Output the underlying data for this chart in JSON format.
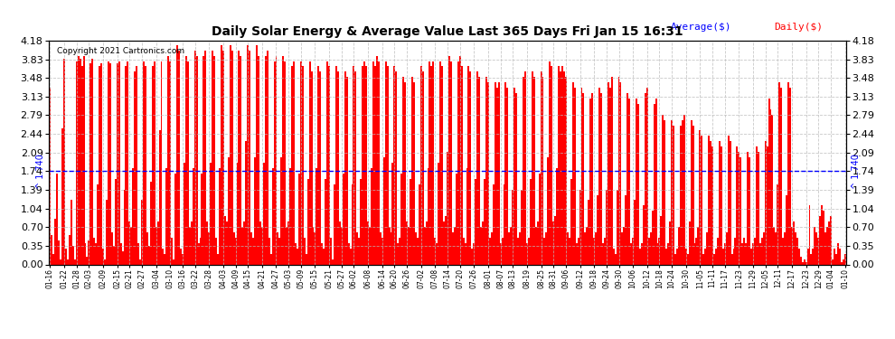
{
  "title": "Daily Solar Energy & Average Value Last 365 Days Fri Jan 15 16:31",
  "copyright": "Copyright 2021 Cartronics.com",
  "average_value": 1.74,
  "bar_color": "#ff0000",
  "average_line_color": "#0000ff",
  "background_color": "#ffffff",
  "grid_color": "#bbbbbb",
  "ylim": [
    0.0,
    4.18
  ],
  "yticks": [
    0.0,
    0.35,
    0.7,
    1.04,
    1.39,
    1.74,
    2.09,
    2.44,
    2.79,
    3.13,
    3.48,
    3.83,
    4.18
  ],
  "legend_avg_label": "Average($)",
  "legend_daily_label": "Daily($)",
  "legend_avg_color": "#0000ff",
  "legend_daily_color": "#ff0000",
  "xtick_labels": [
    "01-16",
    "01-22",
    "01-28",
    "02-03",
    "02-09",
    "02-15",
    "02-21",
    "02-27",
    "03-04",
    "03-10",
    "03-16",
    "03-22",
    "03-28",
    "04-03",
    "04-09",
    "04-15",
    "04-21",
    "04-27",
    "05-03",
    "05-09",
    "05-15",
    "05-21",
    "05-27",
    "06-02",
    "06-08",
    "06-14",
    "06-20",
    "06-26",
    "07-02",
    "07-08",
    "07-14",
    "07-20",
    "07-26",
    "08-01",
    "08-07",
    "08-13",
    "08-19",
    "08-25",
    "08-31",
    "09-06",
    "09-12",
    "09-18",
    "09-24",
    "09-30",
    "10-06",
    "10-12",
    "10-18",
    "10-24",
    "10-30",
    "11-05",
    "11-11",
    "11-17",
    "11-23",
    "11-29",
    "12-05",
    "12-11",
    "12-17",
    "12-23",
    "12-29",
    "01-04",
    "01-10"
  ],
  "bar_values": [
    3.3,
    0.55,
    0.2,
    0.85,
    1.7,
    0.45,
    0.1,
    2.55,
    3.85,
    0.3,
    0.1,
    0.55,
    1.2,
    0.35,
    0.1,
    3.8,
    3.9,
    3.85,
    3.7,
    3.9,
    0.4,
    0.15,
    0.45,
    3.75,
    3.85,
    0.5,
    0.4,
    1.5,
    3.7,
    3.75,
    0.3,
    0.1,
    1.2,
    3.8,
    3.75,
    0.6,
    0.35,
    1.6,
    3.75,
    3.8,
    0.4,
    0.25,
    1.4,
    3.7,
    3.8,
    0.8,
    0.7,
    1.8,
    3.6,
    3.7,
    0.4,
    0.1,
    1.2,
    3.8,
    3.7,
    0.6,
    0.35,
    1.55,
    3.7,
    3.8,
    0.7,
    0.8,
    2.5,
    3.8,
    0.3,
    0.2,
    1.8,
    3.9,
    3.8,
    0.5,
    0.1,
    1.7,
    4.1,
    4.0,
    0.3,
    0.2,
    1.9,
    3.9,
    3.8,
    0.7,
    0.8,
    1.8,
    4.0,
    3.9,
    0.4,
    0.5,
    1.7,
    3.9,
    4.0,
    0.8,
    0.6,
    1.9,
    4.0,
    3.9,
    0.5,
    0.2,
    1.8,
    4.1,
    4.0,
    0.9,
    0.8,
    2.0,
    4.1,
    4.0,
    0.6,
    0.5,
    1.9,
    4.0,
    3.9,
    0.7,
    0.8,
    2.3,
    4.1,
    4.0,
    0.6,
    0.5,
    2.0,
    4.1,
    3.9,
    0.8,
    0.7,
    1.9,
    3.9,
    4.0,
    0.5,
    0.2,
    1.8,
    3.8,
    3.9,
    0.6,
    0.5,
    2.0,
    3.9,
    3.8,
    0.7,
    0.8,
    1.8,
    3.7,
    3.8,
    0.4,
    0.3,
    1.7,
    3.8,
    3.7,
    0.5,
    0.2,
    1.6,
    3.8,
    3.6,
    0.7,
    0.6,
    1.8,
    3.7,
    3.6,
    0.4,
    0.3,
    1.6,
    3.8,
    3.7,
    0.5,
    0.1,
    1.5,
    3.7,
    3.6,
    0.8,
    0.7,
    1.7,
    3.6,
    3.5,
    0.4,
    0.3,
    1.5,
    3.7,
    3.6,
    0.6,
    0.5,
    1.6,
    3.7,
    3.8,
    3.7,
    0.8,
    0.7,
    1.8,
    3.8,
    3.7,
    3.9,
    3.8,
    0.6,
    0.5,
    2.0,
    3.8,
    3.7,
    0.7,
    0.6,
    1.9,
    3.7,
    3.6,
    0.4,
    0.5,
    1.7,
    3.5,
    3.4,
    0.8,
    0.7,
    1.6,
    3.5,
    3.4,
    0.6,
    0.5,
    1.5,
    3.7,
    3.6,
    0.7,
    0.8,
    1.8,
    3.8,
    3.7,
    3.8,
    0.5,
    0.4,
    1.9,
    3.8,
    3.7,
    0.8,
    0.9,
    2.1,
    3.9,
    3.8,
    0.6,
    0.7,
    1.7,
    3.8,
    3.9,
    3.7,
    0.5,
    0.4,
    1.8,
    3.7,
    3.6,
    0.3,
    0.4,
    1.6,
    3.6,
    3.5,
    0.7,
    0.8,
    1.6,
    3.5,
    3.4,
    0.5,
    0.6,
    1.5,
    3.4,
    3.3,
    3.4,
    0.4,
    0.5,
    1.5,
    3.4,
    3.3,
    0.6,
    0.7,
    1.4,
    3.3,
    3.2,
    0.5,
    0.6,
    1.4,
    3.5,
    3.6,
    0.4,
    0.5,
    1.6,
    3.6,
    3.5,
    0.7,
    0.8,
    1.7,
    3.6,
    3.5,
    0.5,
    0.6,
    2.0,
    3.8,
    3.7,
    0.8,
    0.9,
    1.8,
    3.7,
    3.6,
    3.7,
    3.6,
    3.5,
    0.6,
    0.5,
    1.6,
    3.4,
    3.3,
    0.4,
    0.5,
    1.4,
    3.3,
    3.2,
    0.6,
    0.7,
    1.2,
    3.1,
    3.2,
    0.5,
    0.6,
    1.3,
    3.3,
    3.2,
    0.4,
    0.5,
    1.4,
    3.4,
    3.3,
    3.5,
    0.3,
    0.2,
    1.4,
    3.5,
    3.4,
    0.6,
    0.7,
    1.3,
    3.2,
    3.1,
    0.4,
    0.5,
    1.2,
    3.1,
    3.0,
    0.3,
    0.4,
    1.1,
    3.2,
    3.3,
    0.5,
    0.6,
    1.0,
    3.0,
    3.1,
    0.4,
    0.5,
    0.9,
    2.8,
    2.7,
    0.3,
    0.4,
    0.8,
    2.7,
    2.6,
    0.2,
    0.3,
    0.7,
    2.6,
    2.7,
    2.8,
    0.3,
    0.2,
    0.8,
    2.7,
    2.6,
    0.4,
    0.5,
    0.7,
    2.5,
    2.4,
    0.2,
    0.3,
    0.6,
    2.4,
    2.3,
    2.2,
    0.2,
    0.3,
    0.5,
    2.3,
    2.2,
    0.3,
    0.4,
    0.6,
    2.4,
    2.3,
    0.2,
    0.3,
    0.5,
    2.2,
    2.1,
    2.0,
    0.4,
    0.5,
    0.4,
    2.1,
    2.0,
    0.3,
    0.4,
    0.5,
    2.2,
    2.1,
    0.4,
    0.5,
    0.6,
    2.3,
    2.2,
    3.1,
    2.9,
    2.8,
    0.7,
    0.6,
    1.5,
    3.4,
    3.3,
    0.5,
    0.6,
    1.3,
    3.4,
    3.3,
    0.7,
    0.8,
    0.6,
    0.5,
    0.3,
    0.15,
    0.05,
    0.1,
    0.05,
    0.3,
    1.1,
    0.2,
    0.3,
    0.7,
    0.6,
    0.5,
    0.9,
    1.1,
    1.0,
    0.6,
    0.7,
    0.8,
    0.9,
    0.1,
    0.3,
    0.2,
    0.4,
    0.3,
    0.05,
    0.1,
    0.2
  ]
}
